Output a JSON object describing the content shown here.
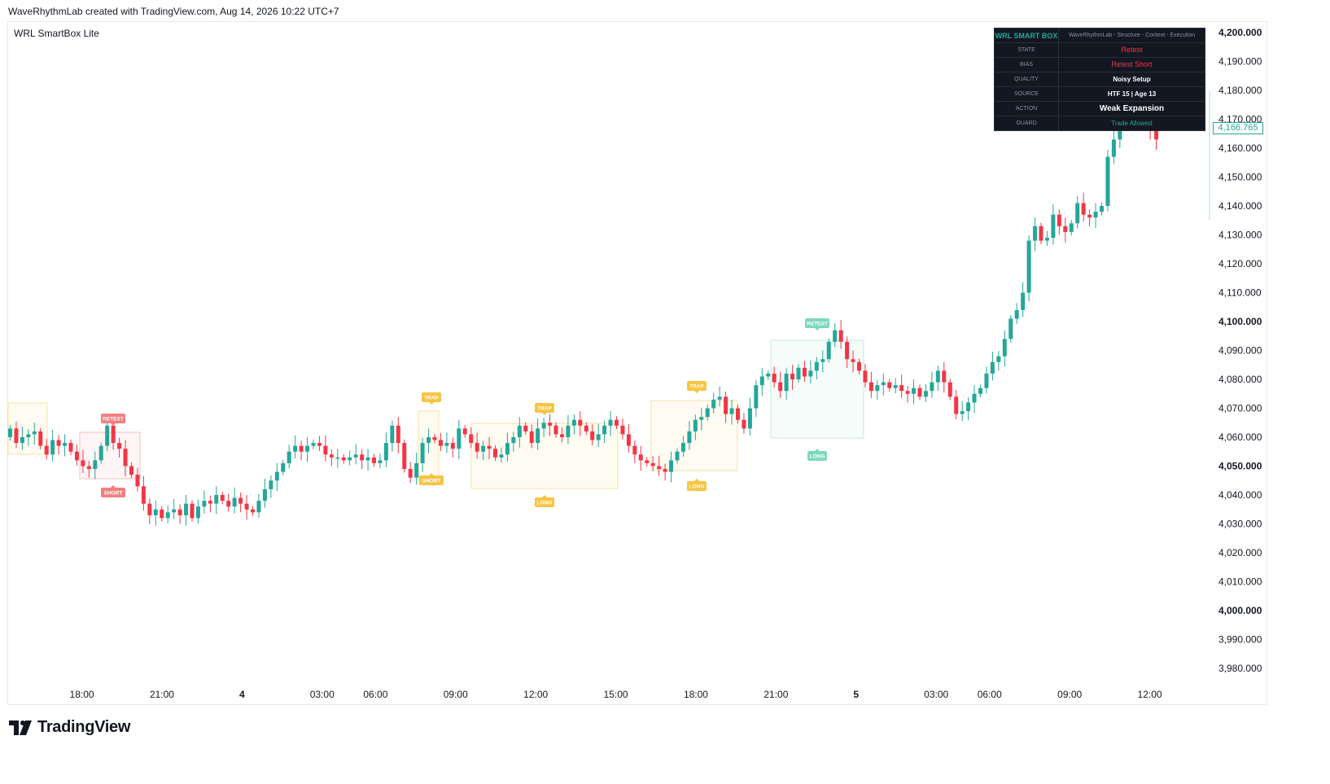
{
  "header": {
    "attribution": "WaveRhythmLab created with TradingView.com, Aug 14, 2026 10:22 UTC+7"
  },
  "indicator": {
    "name": "WRL SmartBox Lite"
  },
  "smartbox": {
    "title": "WRL SMART BOX",
    "subtitle": "WaveRhythmLab - Structure - Context - Execution",
    "rows": [
      {
        "key": "STATE",
        "value": "Retest",
        "color": "#f23645"
      },
      {
        "key": "BIAS",
        "value": "Retest Short",
        "color": "#f23645"
      },
      {
        "key": "QUALITY",
        "value": "Noisy Setup",
        "color": "#ffffff"
      },
      {
        "key": "SOURCE",
        "value": "HTF 15 | Age 13",
        "color": "#ffffff"
      },
      {
        "key": "ACTION",
        "value": "Weak Expansion",
        "color": "#ffffff"
      },
      {
        "key": "GUARD",
        "value": "Trade Allowed",
        "color": "#26a69a"
      }
    ]
  },
  "last_price": "4,166.765",
  "footer": {
    "brand": "TradingView"
  },
  "colors": {
    "up": "#26a69a",
    "down": "#f23645",
    "trap": "#f7c444",
    "retest_red": "#f08080",
    "retest_green": "#7fd8be"
  },
  "chart_data": {
    "type": "candlestick",
    "title": "",
    "ylim": [
      3975,
      4205
    ],
    "y_ticks": [
      "4,200.000",
      "4,190.000",
      "4,180.000",
      "4,170.000",
      "4,160.000",
      "4,150.000",
      "4,140.000",
      "4,130.000",
      "4,120.000",
      "4,110.000",
      "4,100.000",
      "4,090.000",
      "4,080.000",
      "4,070.000",
      "4,060.000",
      "4,050.000",
      "4,040.000",
      "4,030.000",
      "4,020.000",
      "4,010.000",
      "4,000.000",
      "3,990.000",
      "3,980.000"
    ],
    "y_tick_values": [
      4200,
      4190,
      4180,
      4170,
      4160,
      4150,
      4140,
      4130,
      4120,
      4110,
      4100,
      4090,
      4080,
      4070,
      4060,
      4050,
      4040,
      4030,
      4020,
      4010,
      4000,
      3990,
      3980
    ],
    "bold_y_ticks": [
      "4,200.000",
      "4,100.000",
      "4,050.000",
      "4,000.000"
    ],
    "x_ticks": [
      {
        "label": "18:00",
        "slot": 27
      },
      {
        "label": "21:00",
        "slot": 57
      },
      {
        "label": "4",
        "slot": 87,
        "bold": true
      },
      {
        "label": "03:00",
        "slot": 117
      },
      {
        "label": "06:00",
        "slot": 137
      },
      {
        "label": "09:00",
        "slot": 167
      },
      {
        "label": "12:00",
        "slot": 197
      },
      {
        "label": "15:00",
        "slot": 227
      },
      {
        "label": "18:00",
        "slot": 257
      },
      {
        "label": "21:00",
        "slot": 287
      },
      {
        "label": "5",
        "slot": 317,
        "bold": true
      },
      {
        "label": "03:00",
        "slot": 347
      },
      {
        "label": "06:00",
        "slot": 367
      },
      {
        "label": "09:00",
        "slot": 397
      },
      {
        "label": "12:00",
        "slot": 427
      }
    ],
    "candles_close": [
      4063,
      4058,
      4060,
      4061,
      4062,
      4057,
      4054,
      4059,
      4057,
      4058,
      4055,
      4052,
      4050,
      4049,
      4052,
      4057,
      4064,
      4058,
      4056,
      4050,
      4047,
      4043,
      4037,
      4033,
      4035,
      4032,
      4034,
      4035,
      4033,
      4037,
      4032,
      4036,
      4038,
      4037,
      4040,
      4038,
      4036,
      4039,
      4037,
      4035,
      4034,
      4038,
      4042,
      4045,
      4048,
      4051,
      4055,
      4057,
      4055,
      4057,
      4058,
      4057,
      4054,
      4053,
      4053,
      4052,
      4053,
      4054,
      4052,
      4053,
      4051,
      4052,
      4058,
      4064,
      4058,
      4049,
      4046,
      4051,
      4058,
      4060,
      4059,
      4057,
      4058,
      4056,
      4063,
      4061,
      4058,
      4055,
      4057,
      4056,
      4053,
      4054,
      4058,
      4060,
      4064,
      4062,
      4058,
      4063,
      4065,
      4064,
      4061,
      4060,
      4064,
      4066,
      4064,
      4062,
      4059,
      4061,
      4064,
      4066,
      4064,
      4061,
      4057,
      4054,
      4052,
      4051,
      4050,
      4049,
      4048,
      4052,
      4055,
      4058,
      4062,
      4066,
      4067,
      4070,
      4073,
      4074,
      4068,
      4070,
      4066,
      4063,
      4070,
      4078,
      4081,
      4082,
      4079,
      4076,
      4082,
      4080,
      4084,
      4081,
      4083,
      4086,
      4087,
      4093,
      4097,
      4093,
      4087,
      4086,
      4083,
      4079,
      4076,
      4078,
      4079,
      4077,
      4078,
      4076,
      4075,
      4077,
      4074,
      4076,
      4079,
      4083,
      4079,
      4074,
      4068,
      4069,
      4072,
      4075,
      4077,
      4082,
      4086,
      4088,
      4094,
      4101,
      4104,
      4110,
      4128,
      4133,
      4128,
      4129,
      4137,
      4133,
      4131,
      4134,
      4141,
      4137,
      4136,
      4138,
      4140,
      4157,
      4163,
      4172,
      4176,
      4170,
      4174,
      4176,
      4166,
      4163
    ]
  },
  "annotations": [
    {
      "label": "RETEST",
      "kind": "retest_red"
    },
    {
      "label": "SHORT",
      "kind": "retest_red"
    },
    {
      "label": "TRAP",
      "kind": "trap"
    },
    {
      "label": "SHORT",
      "kind": "trap"
    },
    {
      "label": "TRAP",
      "kind": "trap"
    },
    {
      "label": "LONG",
      "kind": "trap"
    },
    {
      "label": "TRAP",
      "kind": "trap"
    },
    {
      "label": "LONG",
      "kind": "trap"
    },
    {
      "label": "RETEST",
      "kind": "retest_green"
    },
    {
      "label": "LONG",
      "kind": "retest_green"
    }
  ]
}
